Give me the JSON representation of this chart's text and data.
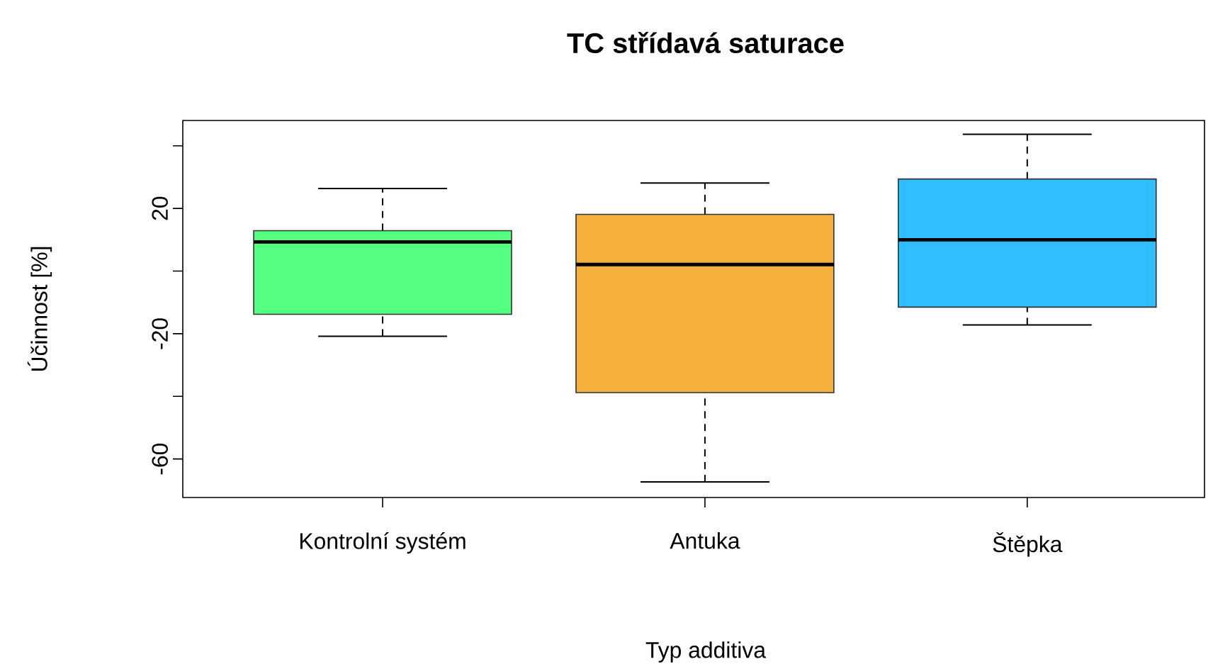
{
  "chart_data": {
    "type": "box",
    "title": "TC střídavá saturace",
    "xlabel": "Typ additiva",
    "ylabel": "Účinnost [%]",
    "categories": [
      "Kontrolní systém",
      "Antuka",
      "Štěpka"
    ],
    "colors": [
      "#55ff80",
      "#f5b03c",
      "#2fbeff"
    ],
    "boxes": [
      {
        "low": -20.8,
        "q1": -13.8,
        "median": 9.3,
        "q3": 12.9,
        "high": 26.4
      },
      {
        "low": -67.3,
        "q1": -38.8,
        "median": 2.1,
        "q3": 18.1,
        "high": 28.1
      },
      {
        "low": -17.2,
        "q1": -11.5,
        "median": 10,
        "q3": 29.4,
        "high": 43.7
      }
    ],
    "ylim": [
      -72.3,
      48.1
    ],
    "yticks": [
      {
        "value": -60,
        "label": "-60"
      },
      {
        "value": -40,
        "label": null
      },
      {
        "value": -20,
        "label": "-20"
      },
      {
        "value": 0,
        "label": null
      },
      {
        "value": 20,
        "label": "20"
      },
      {
        "value": 40,
        "label": null
      }
    ]
  }
}
